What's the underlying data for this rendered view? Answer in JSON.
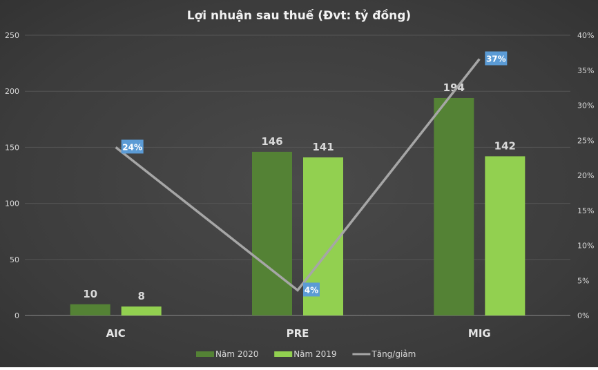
{
  "chart_data": {
    "type": "bar",
    "title": "Lợi nhuận sau thuế (Đvt: tỷ đồng)",
    "categories": [
      "AIC",
      "PRE",
      "MIG"
    ],
    "series": [
      {
        "name": "Năm 2020",
        "type": "bar",
        "axis": "left",
        "color": "#548235",
        "values": [
          10,
          146,
          194
        ],
        "labels": [
          "10",
          "146",
          "194"
        ]
      },
      {
        "name": "Năm 2019",
        "type": "bar",
        "axis": "left",
        "color": "#92d050",
        "values": [
          8,
          141,
          142
        ],
        "labels": [
          "8",
          "141",
          "142"
        ]
      },
      {
        "name": "Tăng/giảm",
        "type": "line",
        "axis": "right",
        "color": "#a6a6a6",
        "values": [
          24,
          3.6,
          36.6
        ],
        "labels": [
          "24%",
          "4%",
          "37%"
        ],
        "label_bg": "#5b9bd5"
      }
    ],
    "y_left": {
      "range": [
        0,
        250
      ],
      "ticks": [
        "0",
        "50",
        "100",
        "150",
        "200",
        "250"
      ]
    },
    "y_right": {
      "range": [
        0,
        40
      ],
      "unit": "%",
      "ticks": [
        "0%",
        "5%",
        "10%",
        "15%",
        "20%",
        "25%",
        "30%",
        "35%",
        "40%"
      ]
    },
    "grid": true,
    "legend": "bottom"
  }
}
